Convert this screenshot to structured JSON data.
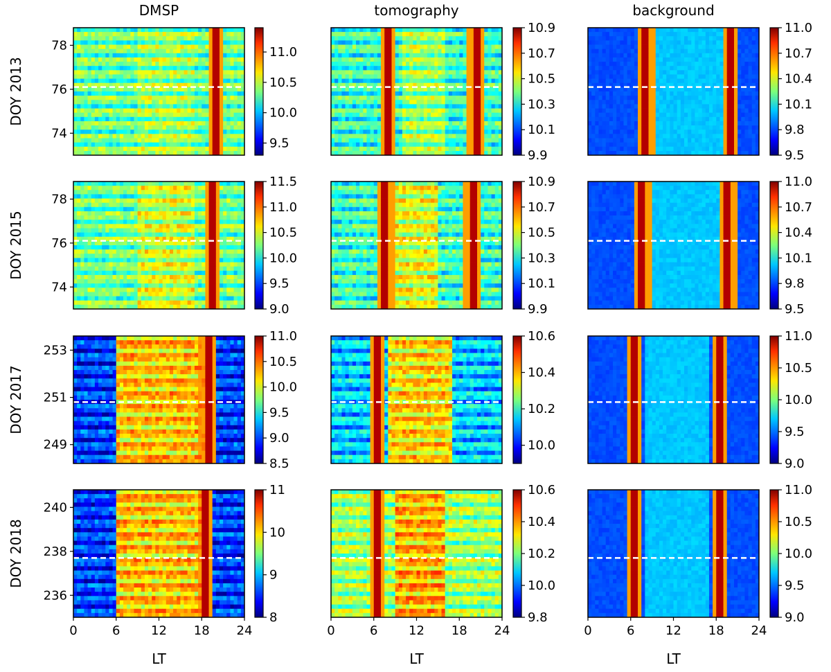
{
  "figure": {
    "column_titles": [
      "DMSP",
      "tomography",
      "background"
    ],
    "row_labels": [
      "DOY 2013",
      "DOY 2015",
      "DOY 2017",
      "DOY 2018"
    ],
    "xlabel": "LT"
  },
  "chart_data": [
    {
      "type": "heatmap",
      "title": "DMSP",
      "ylabel": "DOY 2013",
      "xlabel": "",
      "xlim": [
        0,
        24
      ],
      "ylim": [
        73,
        78.8
      ],
      "yticks": [
        74,
        76,
        78
      ],
      "dashed_line_y": 76.1,
      "colorbar_ticks": [
        "9.5",
        "10.0",
        "10.5",
        "11.0"
      ],
      "colorbar_range": [
        9.3,
        11.4
      ],
      "pattern": {
        "base": 0.5,
        "vertical_lines": [
          20
        ],
        "warm_blocks": [
          [
            9,
            17,
            0.55
          ]
        ],
        "stripes": true
      }
    },
    {
      "type": "heatmap",
      "title": "tomography",
      "ylabel": "",
      "xlabel": "",
      "xlim": [
        0,
        24
      ],
      "ylim": [
        73,
        78.8
      ],
      "yticks": [],
      "dashed_line_y": 76.1,
      "colorbar_ticks": [
        "9.9",
        "10.1",
        "10.3",
        "10.5",
        "10.7",
        "10.9"
      ],
      "colorbar_range": [
        9.9,
        10.9
      ],
      "pattern": {
        "base": 0.45,
        "vertical_lines": [
          8,
          20.3
        ],
        "warm_blocks": [
          [
            10,
            16,
            0.55
          ]
        ],
        "stripes": true
      }
    },
    {
      "type": "heatmap",
      "title": "background",
      "ylabel": "",
      "xlabel": "",
      "xlim": [
        0,
        24
      ],
      "ylim": [
        73,
        78.8
      ],
      "yticks": [],
      "dashed_line_y": 76.1,
      "colorbar_ticks": [
        "9.5",
        "9.8",
        "10.1",
        "10.4",
        "10.7",
        "11.0"
      ],
      "colorbar_range": [
        9.5,
        11.0
      ],
      "pattern": {
        "base": 0.2,
        "vertical_lines": [
          8.2,
          20
        ],
        "warm_blocks": [
          [
            9,
            19,
            0.32
          ]
        ],
        "stripes": false
      }
    },
    {
      "type": "heatmap",
      "title": "",
      "ylabel": "DOY 2015",
      "xlabel": "",
      "xlim": [
        0,
        24
      ],
      "ylim": [
        73,
        78.8
      ],
      "yticks": [
        74,
        76,
        78
      ],
      "dashed_line_y": 76.1,
      "colorbar_ticks": [
        "9.0",
        "9.5",
        "10.0",
        "10.5",
        "11.0",
        "11.5"
      ],
      "colorbar_range": [
        9.0,
        11.5
      ],
      "pattern": {
        "base": 0.5,
        "vertical_lines": [
          19.5
        ],
        "warm_blocks": [
          [
            9,
            17,
            0.6
          ]
        ],
        "stripes": true
      }
    },
    {
      "type": "heatmap",
      "title": "",
      "ylabel": "",
      "xlabel": "",
      "xlim": [
        0,
        24
      ],
      "ylim": [
        73,
        78.8
      ],
      "yticks": [],
      "dashed_line_y": 76.1,
      "colorbar_ticks": [
        "9.9",
        "10.1",
        "10.3",
        "10.5",
        "10.7",
        "10.9"
      ],
      "colorbar_range": [
        9.9,
        10.9
      ],
      "pattern": {
        "base": 0.45,
        "vertical_lines": [
          7.6,
          19.8
        ],
        "warm_blocks": [
          [
            9,
            15,
            0.62
          ]
        ],
        "stripes": true
      }
    },
    {
      "type": "heatmap",
      "title": "",
      "ylabel": "",
      "xlabel": "",
      "xlim": [
        0,
        24
      ],
      "ylim": [
        73,
        78.8
      ],
      "yticks": [],
      "dashed_line_y": 76.1,
      "colorbar_ticks": [
        "9.5",
        "9.8",
        "10.1",
        "10.4",
        "10.7",
        "11.0"
      ],
      "colorbar_range": [
        9.5,
        11.0
      ],
      "pattern": {
        "base": 0.2,
        "vertical_lines": [
          7.6,
          19.6
        ],
        "warm_blocks": [
          [
            9,
            19,
            0.32
          ]
        ],
        "stripes": false
      }
    },
    {
      "type": "heatmap",
      "title": "",
      "ylabel": "DOY 2017",
      "xlabel": "",
      "xlim": [
        0,
        24
      ],
      "ylim": [
        248.2,
        253.6
      ],
      "yticks": [
        249,
        251,
        253
      ],
      "dashed_line_y": 250.8,
      "colorbar_ticks": [
        "8.5",
        "9.0",
        "9.5",
        "10.0",
        "10.5",
        "11.0"
      ],
      "colorbar_range": [
        8.5,
        11.0
      ],
      "pattern": {
        "base": 0.2,
        "vertical_lines": [
          18.8
        ],
        "warm_blocks": [
          [
            6,
            18.8,
            0.7
          ]
        ],
        "stripes": true
      }
    },
    {
      "type": "heatmap",
      "title": "",
      "ylabel": "",
      "xlabel": "",
      "xlim": [
        0,
        24
      ],
      "ylim": [
        248.2,
        253.6
      ],
      "yticks": [],
      "dashed_line_y": 250.8,
      "colorbar_ticks": [
        "10.0",
        "10.2",
        "10.4",
        "10.6"
      ],
      "colorbar_range": [
        9.9,
        10.6
      ],
      "pattern": {
        "base": 0.35,
        "vertical_lines": [
          6.5
        ],
        "warm_blocks": [
          [
            8,
            17,
            0.68
          ]
        ],
        "stripes": true
      }
    },
    {
      "type": "heatmap",
      "title": "",
      "ylabel": "",
      "xlabel": "",
      "xlim": [
        0,
        24
      ],
      "ylim": [
        248.2,
        253.6
      ],
      "yticks": [],
      "dashed_line_y": 250.8,
      "colorbar_ticks": [
        "9.0",
        "9.5",
        "10.0",
        "10.5",
        "11.0"
      ],
      "colorbar_range": [
        9.0,
        11.0
      ],
      "pattern": {
        "base": 0.2,
        "vertical_lines": [
          6.5,
          18.5
        ],
        "warm_blocks": [
          [
            8,
            17,
            0.32
          ]
        ],
        "stripes": false
      }
    },
    {
      "type": "heatmap",
      "title": "",
      "ylabel": "DOY 2018",
      "xlabel": "LT",
      "xlim": [
        0,
        24
      ],
      "ylim": [
        235,
        240.8
      ],
      "yticks": [
        236,
        238,
        240
      ],
      "dashed_line_y": 237.7,
      "colorbar_ticks": [
        "8",
        "9",
        "10",
        "11"
      ],
      "colorbar_range": [
        8,
        11
      ],
      "pattern": {
        "base": 0.2,
        "vertical_lines": [
          18.5
        ],
        "warm_blocks": [
          [
            6,
            18.5,
            0.7
          ]
        ],
        "stripes": true
      }
    },
    {
      "type": "heatmap",
      "title": "",
      "ylabel": "",
      "xlabel": "LT",
      "xlim": [
        0,
        24
      ],
      "ylim": [
        235,
        240.8
      ],
      "yticks": [],
      "dashed_line_y": 237.7,
      "colorbar_ticks": [
        "9.8",
        "10.0",
        "10.2",
        "10.4",
        "10.6"
      ],
      "colorbar_range": [
        9.8,
        10.6
      ],
      "pattern": {
        "base": 0.55,
        "vertical_lines": [
          6.5
        ],
        "warm_blocks": [
          [
            9,
            16,
            0.72
          ]
        ],
        "stripes": true
      }
    },
    {
      "type": "heatmap",
      "title": "",
      "ylabel": "",
      "xlabel": "LT",
      "xlim": [
        0,
        24
      ],
      "ylim": [
        235,
        240.8
      ],
      "yticks": [],
      "dashed_line_y": 237.7,
      "colorbar_ticks": [
        "9.0",
        "9.5",
        "10.0",
        "10.5",
        "11.0"
      ],
      "colorbar_range": [
        9.0,
        11.0
      ],
      "pattern": {
        "base": 0.2,
        "vertical_lines": [
          6.5,
          18.5
        ],
        "warm_blocks": [
          [
            8,
            17,
            0.32
          ]
        ],
        "stripes": false
      }
    }
  ],
  "x_ticks": [
    "0",
    "6",
    "12",
    "18",
    "24"
  ]
}
